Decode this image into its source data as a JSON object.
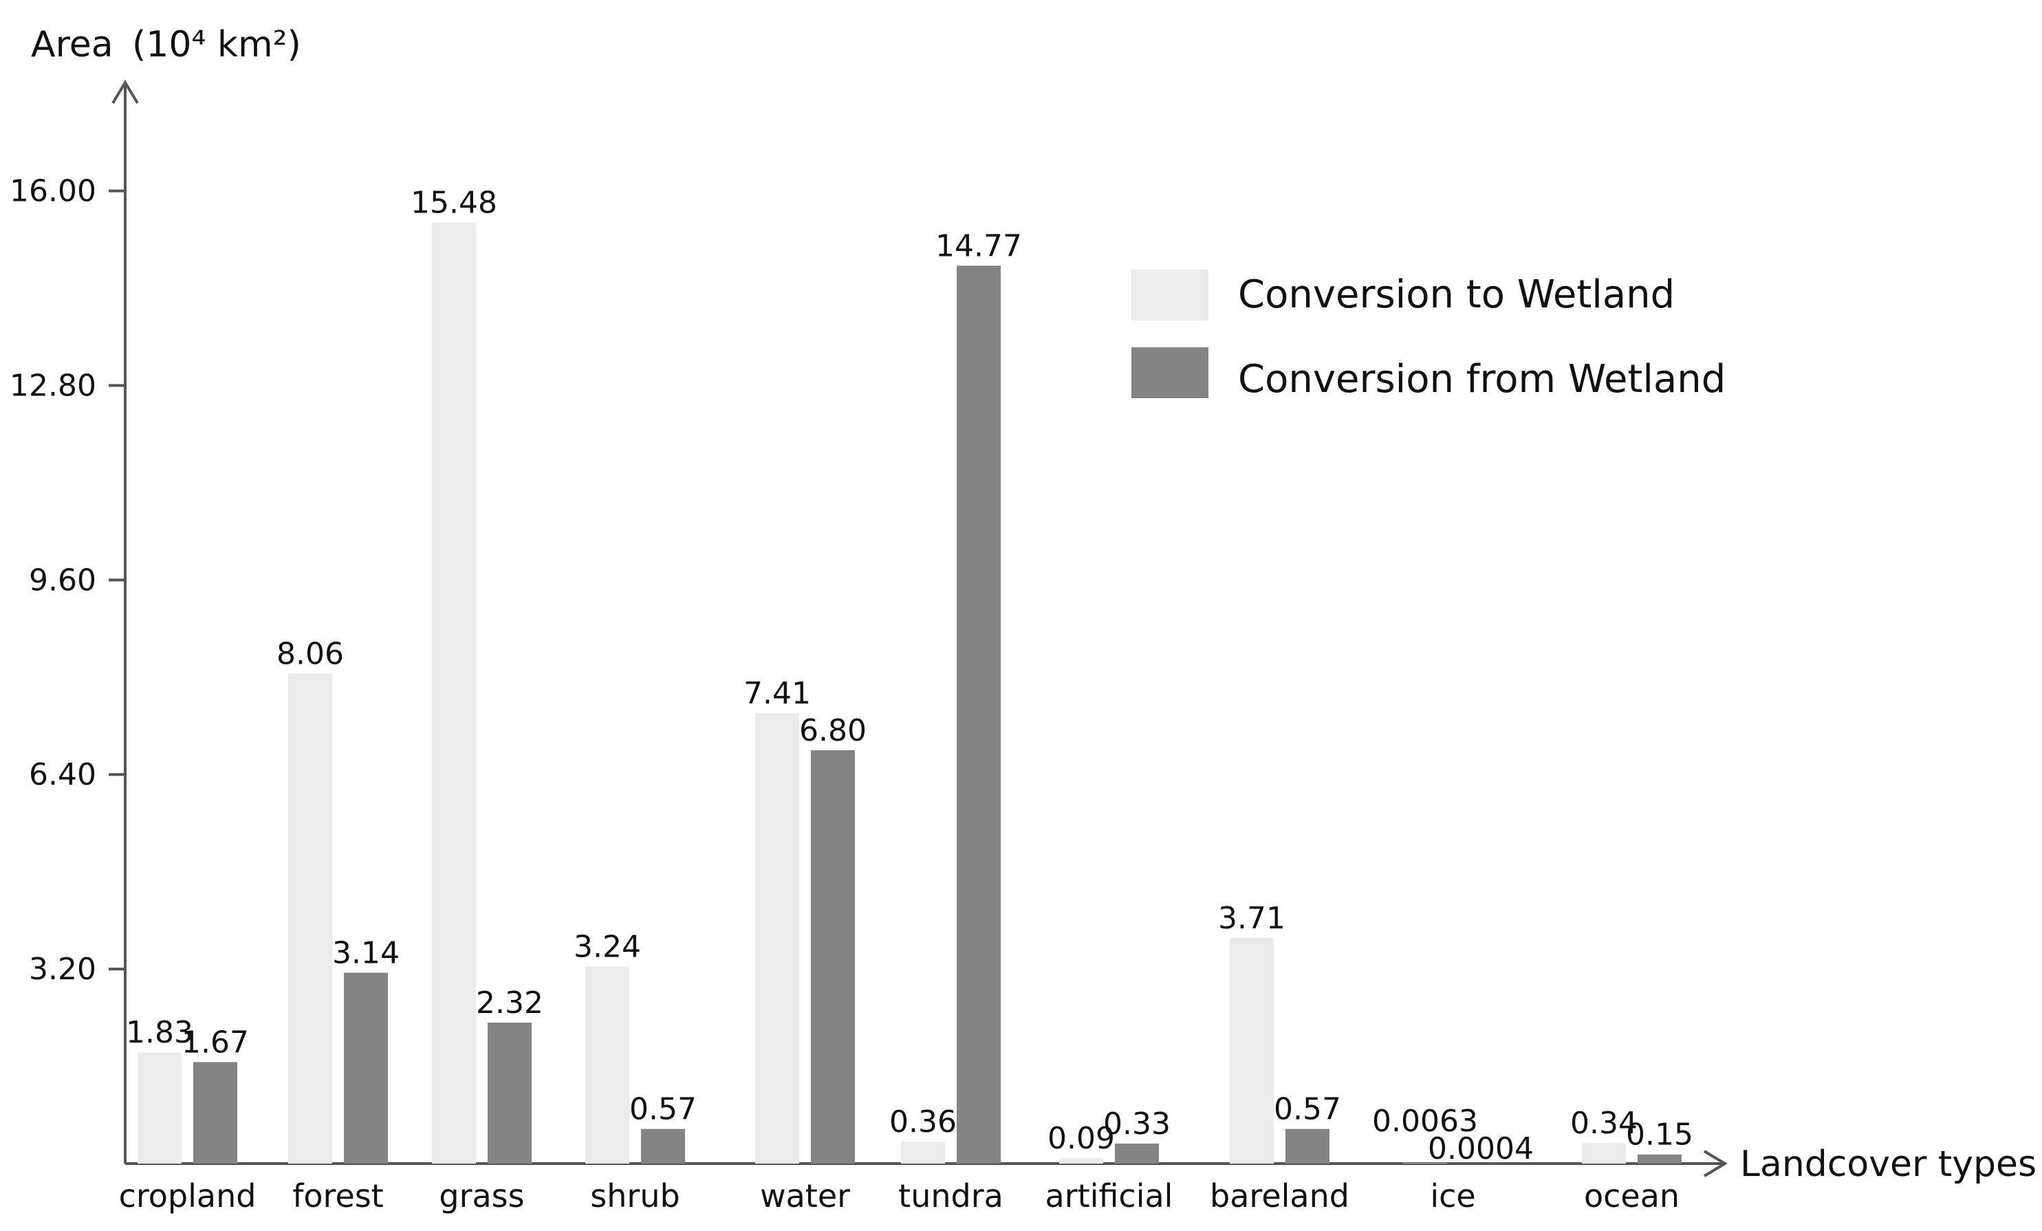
{
  "chart_data": {
    "type": "bar",
    "title": "",
    "ylabel": "Area",
    "ylabel_unit": "(10⁴ km²)",
    "xlabel": "Landcover types",
    "ylim": [
      0,
      17.6
    ],
    "yticks": [
      "3.20",
      "6.40",
      "9.60",
      "12.80",
      "16.00"
    ],
    "ytick_values": [
      3.2,
      6.4,
      9.6,
      12.8,
      16.0
    ],
    "grid": false,
    "legend_position": "top-right",
    "categories": [
      "cropland",
      "forest",
      "grass",
      "shrub",
      "water",
      "tundra",
      "artificial",
      "bareland",
      "ice",
      "ocean"
    ],
    "series": [
      {
        "name": "Conversion to Wetland",
        "color": "#ebebeb",
        "values": [
          1.83,
          8.06,
          15.48,
          3.24,
          7.41,
          0.36,
          0.09,
          3.71,
          0.0063,
          0.34
        ],
        "labels": [
          "1.83",
          "8.06",
          "15.48",
          "3.24",
          "7.41",
          "0.36",
          "0.09",
          "3.71",
          "0.0063",
          "0.34"
        ]
      },
      {
        "name": "Conversion from Wetland",
        "color": "#848484",
        "values": [
          1.67,
          3.14,
          2.32,
          0.57,
          6.8,
          14.77,
          0.33,
          0.57,
          0.0004,
          0.15
        ],
        "labels": [
          "1.67",
          "3.14",
          "2.32",
          "0.57",
          "6.80",
          "14.77",
          "0.33",
          "0.57",
          "0.0004",
          "0.15"
        ]
      }
    ]
  }
}
